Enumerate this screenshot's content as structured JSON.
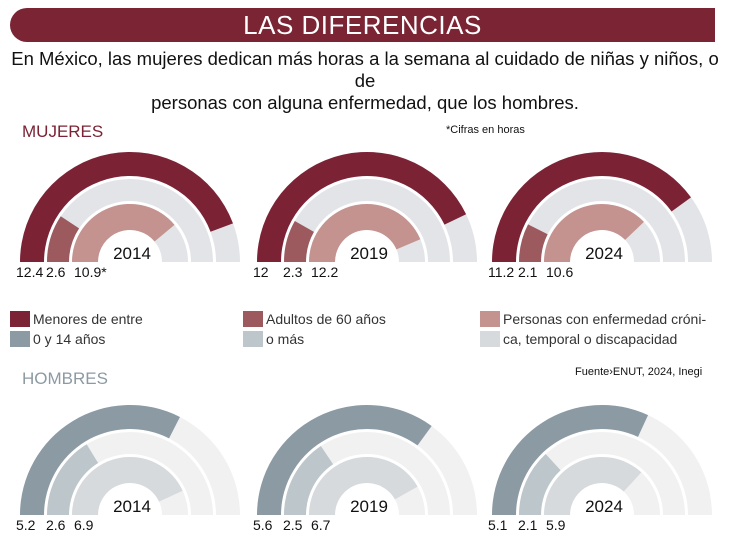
{
  "title": "LAS DIFERENCIAS",
  "subtitle_line1": "En México, las mujeres dedican más horas a la semana al cuidado de niñas y niños, o de",
  "subtitle_line2": "personas con alguna enfermedad, que los hombres.",
  "note": "*Cifras en horas",
  "source": "Fuente›ENUT, 2024, Inegi",
  "legend": [
    {
      "line1": "Menores de entre",
      "line2": "0 y 14 años"
    },
    {
      "line1": "Adultos de 60 años",
      "line2": "o más"
    },
    {
      "line1": "Personas con enfermedad cróni-",
      "line2": "ca, temporal o discapacidad"
    }
  ],
  "colors": {
    "title_bg": "#7a2434",
    "mujeres": [
      "#7b2335",
      "#9c5a5e",
      "#c4928f"
    ],
    "mujeres_track": "#e2e4e8",
    "hombres": [
      "#8c9aa3",
      "#bcc6cb",
      "#d6dadd"
    ],
    "hombres_track": "#f1f1f2"
  },
  "chart_data": [
    {
      "type": "radial-bar",
      "group": "MUJERES",
      "label_color": "#7b2335",
      "unit": "horas",
      "max": 14,
      "charts": [
        {
          "year": "2014",
          "values": [
            12.4,
            2.6,
            10.9
          ],
          "labels": [
            "12.4",
            "2.6",
            "10.9*"
          ]
        },
        {
          "year": "2019",
          "values": [
            12,
            2.3,
            12.2
          ],
          "labels": [
            "12",
            "2.3",
            "12.2"
          ]
        },
        {
          "year": "2024",
          "values": [
            11.2,
            2.1,
            10.6
          ],
          "labels": [
            "11.2",
            "2.1",
            "10.6"
          ]
        }
      ]
    },
    {
      "type": "radial-bar",
      "group": "HOMBRES",
      "label_color": "#8c9aa3",
      "unit": "horas",
      "max": 8,
      "charts": [
        {
          "year": "2014",
          "values": [
            5.2,
            2.6,
            6.9
          ],
          "labels": [
            "5.2",
            "2.6",
            "6.9"
          ]
        },
        {
          "year": "2019",
          "values": [
            5.6,
            2.5,
            6.7
          ],
          "labels": [
            "5.6",
            "2.5",
            "6.7"
          ]
        },
        {
          "year": "2024",
          "values": [
            5.1,
            2.1,
            5.9
          ],
          "labels": [
            "5.1",
            "2.1",
            "5.9"
          ]
        }
      ]
    }
  ]
}
